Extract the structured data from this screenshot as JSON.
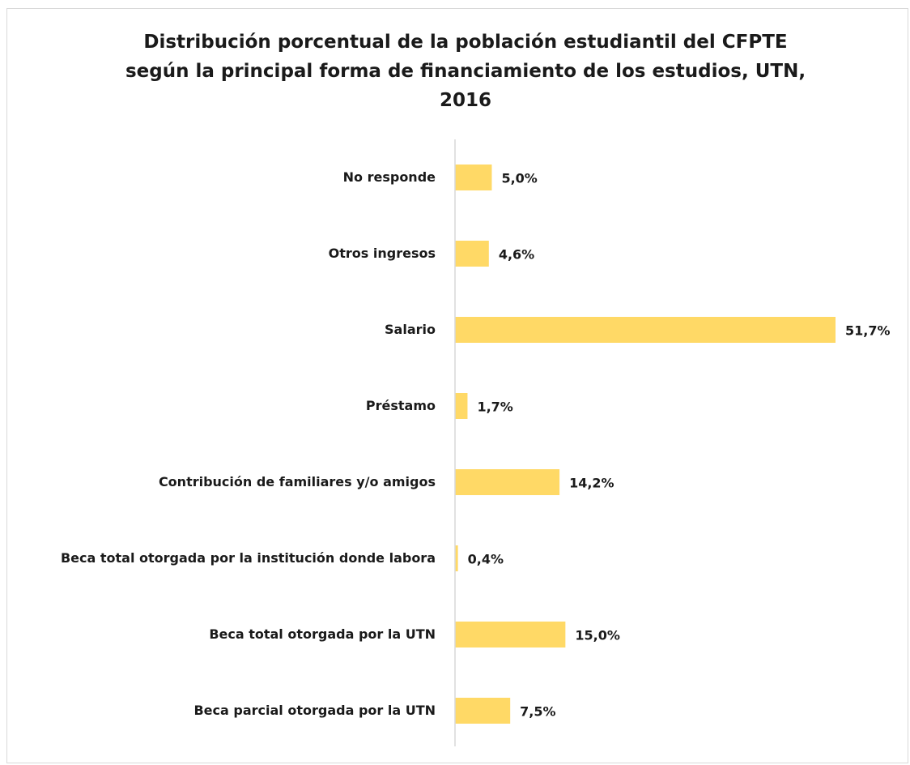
{
  "chart_data": {
    "type": "hbar",
    "title": "Distribución porcentual de la población estudiantil del CFPTE según la principal forma de financiamiento de los estudios, UTN, 2016",
    "categories": [
      "No responde",
      "Otros ingresos",
      "Salario",
      "Préstamo",
      "Contribución de familiares y/o amigos",
      "Beca total otorgada por la institución donde labora",
      "Beca total otorgada por la UTN",
      "Beca parcial otorgada por la UTN"
    ],
    "values": [
      5.0,
      4.6,
      51.7,
      1.7,
      14.2,
      0.4,
      15.0,
      7.5
    ],
    "value_labels": [
      "5,0%",
      "4,6%",
      "51,7%",
      "1,7%",
      "14,2%",
      "0,4%",
      "15,0%",
      "7,5%"
    ],
    "color": "#ffd966"
  }
}
